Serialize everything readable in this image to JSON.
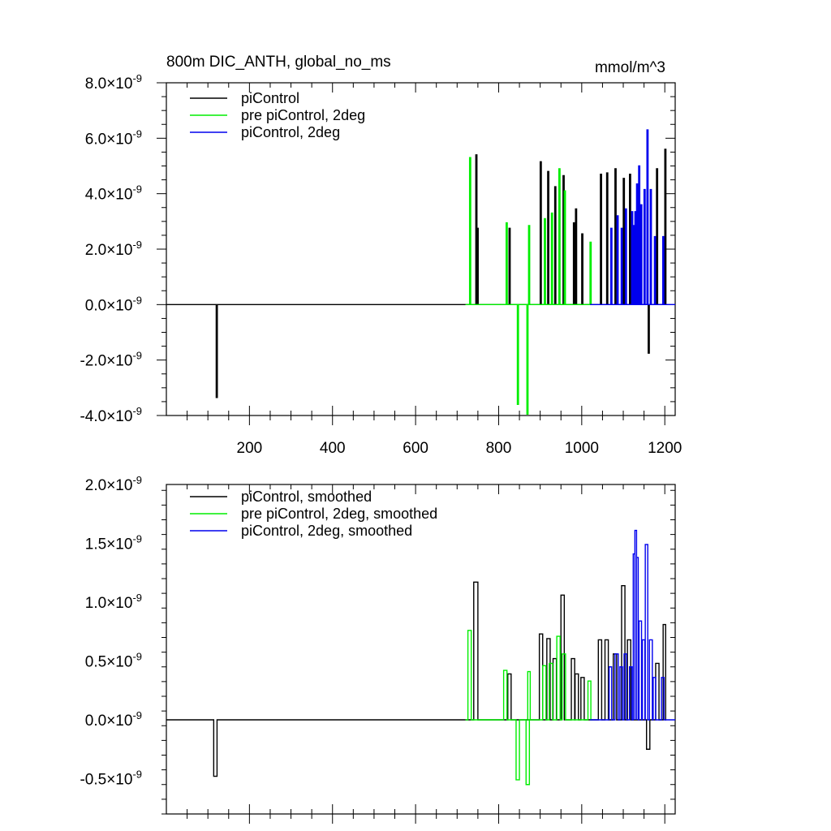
{
  "chart_data": [
    {
      "type": "line",
      "title": "800m DIC_ANTH, global_no_ms",
      "units": "mmol/m^3",
      "xlabel": "",
      "ylabel": "",
      "xlim": [
        0,
        1225
      ],
      "ylim": [
        -4.0,
        8.0
      ],
      "scale_note": "values in units of 10^-9",
      "x_ticks": [
        200,
        400,
        600,
        800,
        1000,
        1200
      ],
      "x_tick_labels": [
        "200",
        "400",
        "600",
        "800",
        "1000",
        "1200"
      ],
      "y_ticks": [
        -4.0,
        -2.0,
        0.0,
        2.0,
        4.0,
        6.0,
        8.0
      ],
      "y_tick_labels": [
        {
          "mant": "-4.0",
          "base": "×10",
          "exp": "-9"
        },
        {
          "mant": "-2.0",
          "base": "×10",
          "exp": "-9"
        },
        {
          "mant": "0.0",
          "base": "×10",
          "exp": "-9"
        },
        {
          "mant": "2.0",
          "base": "×10",
          "exp": "-9"
        },
        {
          "mant": "4.0",
          "base": "×10",
          "exp": "-9"
        },
        {
          "mant": "6.0",
          "base": "×10",
          "exp": "-9"
        },
        {
          "mant": "8.0",
          "base": "×10",
          "exp": "-9"
        }
      ],
      "legend_position": "top-left",
      "series": [
        {
          "name": "piControl",
          "color": "#000000",
          "start": 0,
          "end": 1200,
          "spikes": [
            [
              120,
              -3.35
            ],
            [
              745,
              5.4
            ],
            [
              748,
              2.75
            ],
            [
              825,
              2.75
            ],
            [
              900,
              5.15
            ],
            [
              918,
              4.8
            ],
            [
              935,
              4.25
            ],
            [
              955,
              4.65
            ],
            [
              980,
              2.95
            ],
            [
              985,
              3.45
            ],
            [
              1000,
              2.55
            ],
            [
              1045,
              4.7
            ],
            [
              1060,
              4.75
            ],
            [
              1080,
              4.9
            ],
            [
              1100,
              4.55
            ],
            [
              1115,
              4.7
            ],
            [
              1130,
              2.8
            ],
            [
              1160,
              -1.75
            ],
            [
              1180,
              4.9
            ],
            [
              1200,
              5.6
            ]
          ]
        },
        {
          "name": "pre piControl, 2deg",
          "color": "#00ee00",
          "start": 720,
          "end": 1025,
          "spikes": [
            [
              730,
              5.3
            ],
            [
              818,
              2.95
            ],
            [
              845,
              -3.6
            ],
            [
              868,
              -3.95
            ],
            [
              872,
              2.85
            ],
            [
              910,
              3.1
            ],
            [
              927,
              3.3
            ],
            [
              945,
              4.9
            ],
            [
              958,
              4.1
            ],
            [
              1020,
              2.25
            ]
          ]
        },
        {
          "name": "piControl, 2deg",
          "color": "#0000ee",
          "start": 1020,
          "end": 1225,
          "spikes": [
            [
              1070,
              2.75
            ],
            [
              1085,
              3.2
            ],
            [
              1095,
              2.75
            ],
            [
              1105,
              3.45
            ],
            [
              1120,
              3.35
            ],
            [
              1125,
              2.85
            ],
            [
              1128,
              3.35
            ],
            [
              1132,
              4.35
            ],
            [
              1137,
              5.0
            ],
            [
              1142,
              3.6
            ],
            [
              1150,
              4.15
            ],
            [
              1157,
              6.3
            ],
            [
              1165,
              4.15
            ],
            [
              1175,
              2.45
            ],
            [
              1195,
              2.45
            ]
          ]
        }
      ]
    },
    {
      "type": "line",
      "title": "",
      "xlabel": "",
      "ylabel": "",
      "xlim": [
        0,
        1225
      ],
      "ylim": [
        -0.8,
        2.0
      ],
      "scale_note": "values in units of 10^-9",
      "x_ticks": [
        200,
        400,
        600,
        800,
        1000,
        1200
      ],
      "y_ticks": [
        -0.5,
        0.0,
        0.5,
        1.0,
        1.5,
        2.0
      ],
      "y_tick_labels": [
        {
          "mant": "-0.5",
          "base": "×10",
          "exp": "-9"
        },
        {
          "mant": "0.0",
          "base": "×10",
          "exp": "-9"
        },
        {
          "mant": "0.5",
          "base": "×10",
          "exp": "-9"
        },
        {
          "mant": "1.0",
          "base": "×10",
          "exp": "-9"
        },
        {
          "mant": "1.5",
          "base": "×10",
          "exp": "-9"
        },
        {
          "mant": "2.0",
          "base": "×10",
          "exp": "-9"
        }
      ],
      "legend_position": "top-left",
      "series": [
        {
          "name": "piControl, smoothed",
          "color": "#000000",
          "start": 0,
          "end": 1200,
          "spikes": [
            [
              114,
              122,
              -0.48
            ],
            [
              740,
              750,
              1.17
            ],
            [
              822,
              830,
              0.39
            ],
            [
              898,
              906,
              0.73
            ],
            [
              916,
              924,
              0.69
            ],
            [
              931,
              939,
              0.52
            ],
            [
              950,
              958,
              1.06
            ],
            [
              975,
              983,
              0.52
            ],
            [
              984,
              992,
              0.39
            ],
            [
              998,
              1006,
              0.36
            ],
            [
              1040,
              1048,
              0.68
            ],
            [
              1056,
              1064,
              0.68
            ],
            [
              1076,
              1084,
              0.56
            ],
            [
              1096,
              1104,
              1.14
            ],
            [
              1110,
              1118,
              0.68
            ],
            [
              1156,
              1164,
              -0.25
            ],
            [
              1178,
              1186,
              0.48
            ],
            [
              1196,
              1202,
              0.81
            ]
          ]
        },
        {
          "name": "pre piControl, 2deg, smoothed",
          "color": "#00ee00",
          "start": 720,
          "end": 1025,
          "spikes": [
            [
              726,
              734,
              0.76
            ],
            [
              812,
              820,
              0.42
            ],
            [
              842,
              850,
              -0.51
            ],
            [
              866,
              874,
              -0.55
            ],
            [
              870,
              876,
              0.41
            ],
            [
              906,
              914,
              0.46
            ],
            [
              922,
              930,
              0.48
            ],
            [
              940,
              948,
              0.71
            ],
            [
              953,
              961,
              0.56
            ],
            [
              1015,
              1022,
              0.33
            ]
          ]
        },
        {
          "name": "piControl, 2deg, smoothed",
          "color": "#0000ee",
          "start": 1020,
          "end": 1225,
          "spikes": [
            [
              1066,
              1072,
              0.45
            ],
            [
              1080,
              1088,
              0.56
            ],
            [
              1092,
              1098,
              0.45
            ],
            [
              1102,
              1108,
              0.56
            ],
            [
              1115,
              1121,
              0.45
            ],
            [
              1124,
              1128,
              1.41
            ],
            [
              1128,
              1132,
              1.61
            ],
            [
              1132,
              1136,
              1.38
            ],
            [
              1138,
              1144,
              0.84
            ],
            [
              1146,
              1152,
              0.68
            ],
            [
              1153,
              1159,
              1.49
            ],
            [
              1163,
              1170,
              0.68
            ],
            [
              1172,
              1178,
              0.36
            ],
            [
              1192,
              1198,
              0.36
            ]
          ]
        }
      ]
    }
  ]
}
